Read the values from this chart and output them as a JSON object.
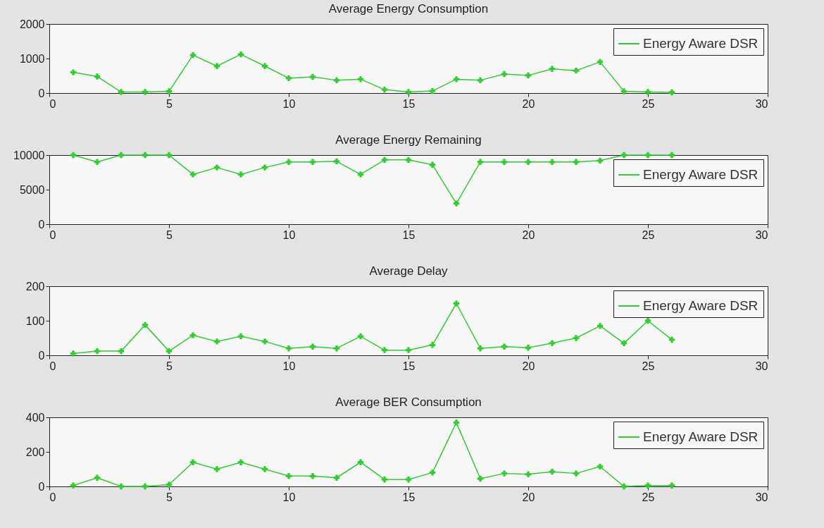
{
  "chart_data": [
    {
      "type": "line",
      "title": "Average Energy Consumption",
      "x": [
        1,
        2,
        3,
        4,
        5,
        6,
        7,
        8,
        9,
        10,
        11,
        12,
        13,
        14,
        15,
        16,
        17,
        18,
        19,
        20,
        21,
        22,
        23,
        24,
        25,
        26
      ],
      "series": [
        {
          "name": "Energy Aware DSR",
          "color": "#33cc33",
          "values": [
            600,
            480,
            30,
            30,
            50,
            1100,
            780,
            1120,
            780,
            430,
            470,
            370,
            400,
            100,
            30,
            60,
            400,
            370,
            550,
            510,
            700,
            650,
            900,
            50,
            30,
            20
          ]
        }
      ],
      "xlim": [
        0,
        30
      ],
      "xticks": [
        0,
        5,
        10,
        15,
        20,
        25,
        30
      ],
      "ylim": [
        0,
        2000
      ],
      "yticks": [
        0,
        1000,
        2000
      ],
      "legend": "top right",
      "marker": "cross",
      "line_style": "solid",
      "grid": false
    },
    {
      "type": "line",
      "title": "Average Energy Remaining",
      "x": [
        1,
        2,
        3,
        4,
        5,
        6,
        7,
        8,
        9,
        10,
        11,
        12,
        13,
        14,
        15,
        16,
        17,
        18,
        19,
        20,
        21,
        22,
        23,
        24,
        25,
        26
      ],
      "series": [
        {
          "name": "Energy Aware DSR",
          "color": "#33cc33",
          "values": [
            10000,
            9000,
            10000,
            10000,
            10000,
            7200,
            8200,
            7200,
            8200,
            9000,
            9000,
            9100,
            7200,
            9300,
            9300,
            8600,
            3000,
            9000,
            9000,
            9000,
            9000,
            9000,
            9200,
            10000,
            10000,
            10000
          ]
        }
      ],
      "xlim": [
        0,
        30
      ],
      "xticks": [
        0,
        5,
        10,
        15,
        20,
        25,
        30
      ],
      "ylim": [
        0,
        10000
      ],
      "yticks": [
        0,
        5000,
        10000
      ],
      "legend": "top right",
      "marker": "cross",
      "line_style": "solid",
      "grid": false
    },
    {
      "type": "line",
      "title": "Average Delay",
      "x": [
        1,
        2,
        3,
        4,
        5,
        6,
        7,
        8,
        9,
        10,
        11,
        12,
        13,
        14,
        15,
        16,
        17,
        18,
        19,
        20,
        21,
        22,
        23,
        24,
        25,
        26
      ],
      "series": [
        {
          "name": "Energy Aware DSR",
          "color": "#33cc33",
          "values": [
            5,
            12,
            12,
            88,
            12,
            58,
            40,
            55,
            40,
            20,
            25,
            20,
            55,
            15,
            15,
            30,
            150,
            20,
            25,
            22,
            35,
            50,
            85,
            35,
            100,
            45
          ]
        }
      ],
      "xlim": [
        0,
        30
      ],
      "xticks": [
        0,
        5,
        10,
        15,
        20,
        25,
        30
      ],
      "ylim": [
        0,
        200
      ],
      "yticks": [
        0,
        100,
        200
      ],
      "legend": "top right",
      "marker": "cross",
      "line_style": "solid",
      "grid": false
    },
    {
      "type": "line",
      "title": "Average BER Consumption",
      "x": [
        1,
        2,
        3,
        4,
        5,
        6,
        7,
        8,
        9,
        10,
        11,
        12,
        13,
        14,
        15,
        16,
        17,
        18,
        19,
        20,
        21,
        22,
        23,
        24,
        25,
        26
      ],
      "series": [
        {
          "name": "Energy Aware DSR",
          "color": "#33cc33",
          "values": [
            5,
            50,
            0,
            0,
            10,
            140,
            100,
            140,
            100,
            60,
            60,
            50,
            140,
            40,
            40,
            80,
            370,
            45,
            75,
            70,
            85,
            75,
            115,
            0,
            5,
            5
          ]
        }
      ],
      "xlim": [
        0,
        30
      ],
      "xticks": [
        0,
        5,
        10,
        15,
        20,
        25,
        30
      ],
      "ylim": [
        0,
        400
      ],
      "yticks": [
        0,
        200,
        400
      ],
      "legend": "top right",
      "marker": "cross",
      "line_style": "solid",
      "grid": false
    }
  ]
}
